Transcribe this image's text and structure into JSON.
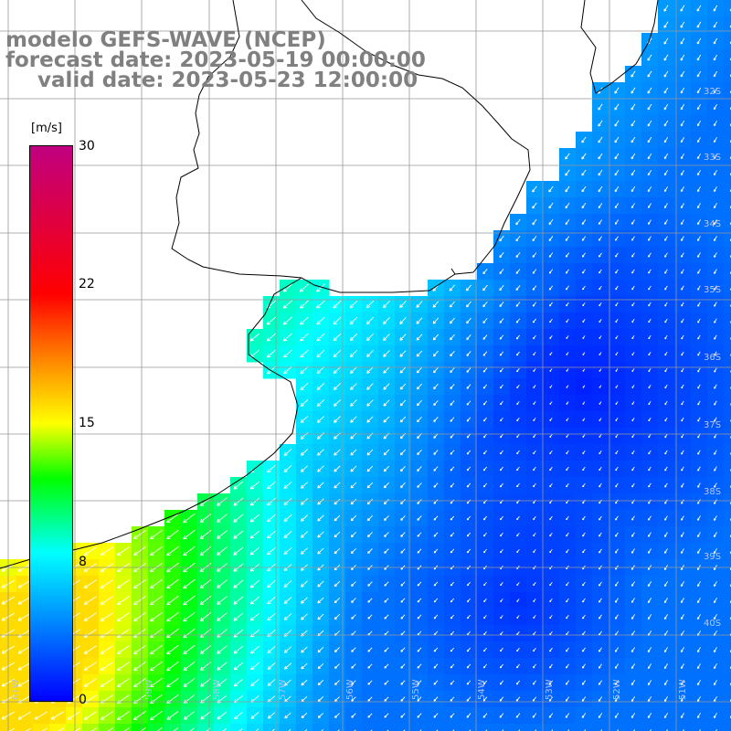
{
  "title": {
    "line1": "modelo GEFS-WAVE (NCEP)",
    "line2": "forecast date: 2023-05-19 00:00:00",
    "line3": "valid date: 2023-05-23 12:00:00"
  },
  "colorbar": {
    "unit": "[m/s]",
    "min": 0,
    "max": 30,
    "ticks": [
      "30",
      "22",
      "15",
      "8",
      "0"
    ],
    "tick_values": [
      30,
      22,
      15,
      8,
      0
    ],
    "colors": [
      "#0000ff",
      "#00ffff",
      "#00ff00",
      "#ffff00",
      "#ff8000",
      "#ff0000",
      "#c00080"
    ]
  },
  "map": {
    "lat_labels": [
      "32S",
      "33S",
      "34S",
      "35S",
      "36S",
      "37S",
      "38S",
      "39S",
      "40S"
    ],
    "lon_labels": [
      "61W",
      "59W",
      "58W",
      "57W",
      "56W",
      "55W",
      "54W",
      "53W",
      "52W",
      "51W"
    ],
    "grid_color": "#999999",
    "land_color": "#ffffff",
    "coast_color": "#000000",
    "arrow_color": "#ffffff"
  }
}
